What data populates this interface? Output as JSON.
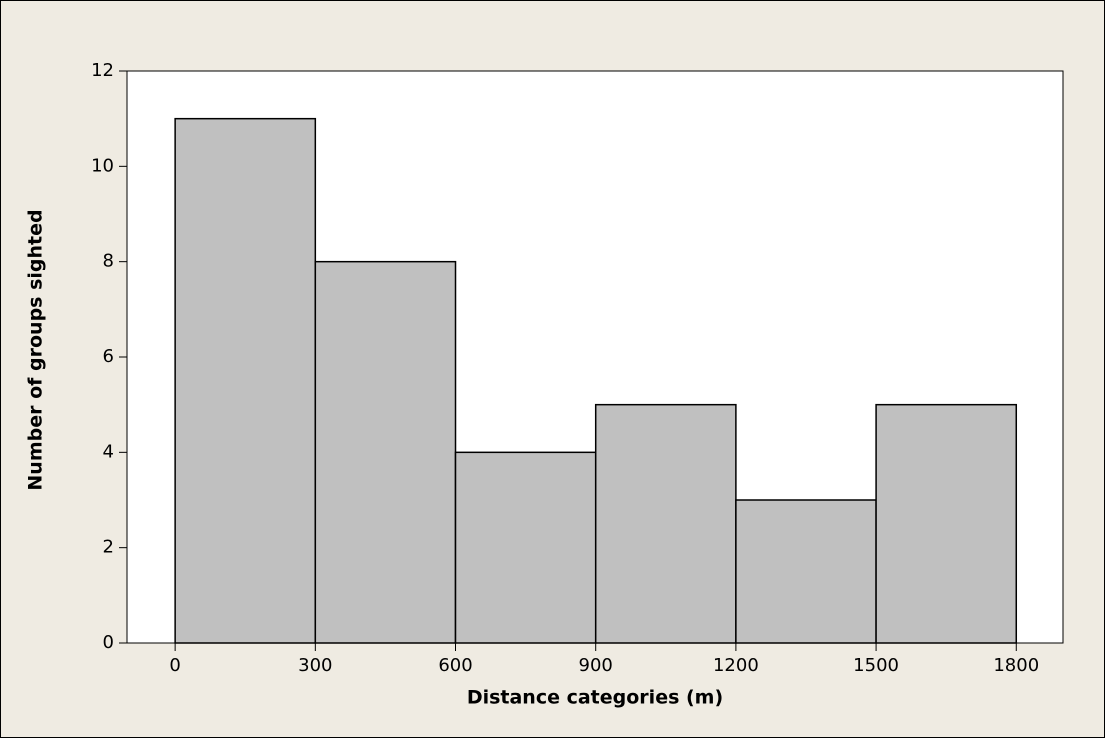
{
  "chart_data": {
    "type": "histogram",
    "x_label": "Distance categories (m)",
    "y_label": "Number of groups sighted",
    "bins": [
      0,
      300,
      600,
      900,
      1200,
      1500,
      1800
    ],
    "counts": [
      11,
      8,
      4,
      5,
      3,
      5
    ],
    "color": "#c0c0c0",
    "xlim": [
      -103,
      1900
    ],
    "xticks": [
      0,
      300,
      600,
      900,
      1200,
      1500,
      1800
    ],
    "ylim": [
      0,
      12
    ],
    "yticks": [
      0,
      2,
      4,
      6,
      8,
      10,
      12
    ]
  }
}
